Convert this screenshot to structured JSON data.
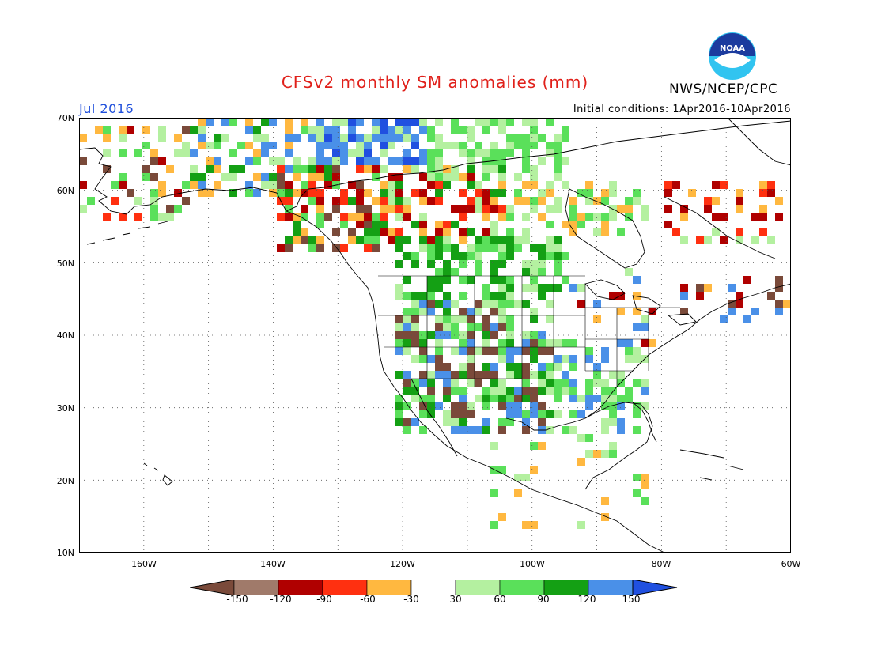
{
  "title": "CFSv2 monthly SM anomalies (mm)",
  "agency": "NWS/NCEP/CPC",
  "valid_month": "Jul 2016",
  "initial_conditions": "Initial conditions: 1Apr2016-10Apr2016",
  "logo_text": "NOAA",
  "lat_labels": [
    "70N",
    "60N",
    "50N",
    "40N",
    "30N",
    "20N",
    "10N"
  ],
  "lon_labels": [
    "160W",
    "140W",
    "120W",
    "100W",
    "80W",
    "60W"
  ],
  "colorbar": {
    "labels": [
      "-150",
      "-120",
      "-90",
      "-60",
      "-30",
      "30",
      "60",
      "90",
      "120",
      "150"
    ],
    "colors": [
      "#7a4a3a",
      "#a07a6a",
      "#b00000",
      "#ff3010",
      "#ffb840",
      "#ffffff",
      "#b4f0a0",
      "#5ae05a",
      "#14a014",
      "#4a90e8",
      "#2050e0"
    ]
  },
  "map": {
    "lon_range": [
      -170,
      -60
    ],
    "lat_range": [
      10,
      70
    ],
    "grid_spacing": 10,
    "grid": "dotted",
    "land_color": "#ffffff",
    "coast_color": "#000000"
  }
}
